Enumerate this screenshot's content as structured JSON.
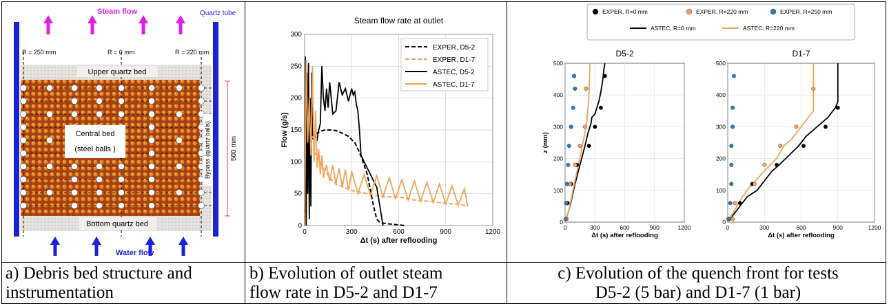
{
  "panel_a": {
    "steam_flow": "Steam flow",
    "quartz_tube": "Quartz tube",
    "r250": "R = 250 mm",
    "r0": "R = 0 mm",
    "r220": "R = 220 mm",
    "upper_bed": "Upper quartz bed",
    "central_bed_1": "Central bed",
    "central_bed_2": "(steel balls )",
    "bypass": "Bypass (quartz balls)",
    "height": "500 mm",
    "bottom_bed": "Bottom quartz bed",
    "water_flow": "Water flow"
  },
  "captions": {
    "a_line1": "a) Debris bed structure and",
    "a_line2": "instrumentation",
    "b_line1": "b) Evolution of outlet steam",
    "b_line2": "flow rate in D5-2 and D1-7",
    "c_line1": "c) Evolution of the quench front for tests",
    "c_line2": "D5-2 (5 bar) and D1-7 (1 bar)"
  },
  "colors": {
    "orange": "#f0a35a",
    "blue": "#2f7bb5",
    "black": "#000000",
    "magenta": "#e020e0",
    "tube_blue": "#1a22d8"
  },
  "chart_data": [
    {
      "type": "line",
      "title": "Steam flow rate at outlet",
      "xlabel": "Δt (s) after reflooding",
      "ylabel": "Flow (g/s)",
      "xlim": [
        0,
        1200
      ],
      "ylim": [
        0,
        300
      ],
      "xticks": [
        0,
        300,
        600,
        900,
        1200
      ],
      "yticks": [
        0,
        50,
        100,
        150,
        200,
        250,
        300
      ],
      "grid": true,
      "legend_position": "top-right",
      "series": [
        {
          "name": "EXPER, D5-2",
          "color": "#000000",
          "dash": true,
          "x": [
            0,
            20,
            40,
            60,
            80,
            100,
            130,
            160,
            200,
            240,
            280,
            320,
            350,
            380,
            400,
            420,
            440,
            460,
            480,
            520,
            560,
            600,
            640
          ],
          "y": [
            20,
            100,
            130,
            140,
            145,
            148,
            150,
            150,
            149,
            145,
            140,
            130,
            115,
            95,
            80,
            55,
            30,
            10,
            5,
            3,
            2,
            1,
            0
          ]
        },
        {
          "name": "EXPER, D1-7",
          "color": "#f0a35a",
          "dash": true,
          "x": [
            0,
            20,
            40,
            80,
            120,
            160,
            200,
            300,
            400,
            500,
            600,
            700,
            800,
            900,
            1000,
            1040
          ],
          "y": [
            10,
            80,
            120,
            110,
            90,
            75,
            65,
            55,
            50,
            45,
            45,
            40,
            38,
            35,
            33,
            30
          ]
        },
        {
          "name": "ASTEC, D5-2",
          "color": "#000000",
          "dash": false,
          "x": [
            0,
            5,
            10,
            15,
            20,
            25,
            30,
            35,
            40,
            45,
            50,
            55,
            60,
            70,
            80,
            90,
            100,
            110,
            120,
            130,
            140,
            150,
            160,
            180,
            200,
            220,
            240,
            260,
            280,
            300,
            310,
            320,
            330,
            340,
            350,
            360,
            380,
            400,
            420,
            440,
            460,
            500
          ],
          "y": [
            0,
            265,
            0,
            240,
            50,
            255,
            10,
            200,
            30,
            240,
            140,
            145,
            140,
            140,
            135,
            150,
            160,
            250,
            200,
            180,
            215,
            185,
            225,
            175,
            180,
            225,
            205,
            215,
            195,
            215,
            205,
            210,
            190,
            180,
            150,
            110,
            100,
            90,
            80,
            70,
            60,
            0
          ]
        },
        {
          "name": "ASTEC, D1-7",
          "color": "#f0a35a",
          "dash": false,
          "x": [
            0,
            10,
            20,
            30,
            40,
            50,
            60,
            70,
            80,
            90,
            100,
            110,
            120,
            140,
            160,
            180,
            200,
            220,
            240,
            260,
            280,
            300,
            340,
            380,
            420,
            460,
            500,
            540,
            580,
            620,
            660,
            700,
            740,
            780,
            820,
            860,
            900,
            940,
            980,
            1020,
            1040
          ],
          "y": [
            0,
            260,
            130,
            200,
            110,
            250,
            100,
            180,
            90,
            120,
            80,
            110,
            75,
            95,
            70,
            95,
            65,
            90,
            60,
            88,
            55,
            85,
            50,
            80,
            48,
            78,
            45,
            75,
            42,
            72,
            40,
            70,
            38,
            68,
            36,
            65,
            34,
            62,
            32,
            58,
            30
          ]
        }
      ]
    },
    {
      "type": "scatter",
      "title": "D5-2",
      "xlabel": "Δt (s) after reflooding",
      "ylabel": "z (mm)",
      "xlim": [
        0,
        1200
      ],
      "ylim": [
        0,
        500
      ],
      "xticks": [
        0,
        300,
        600,
        900,
        1200
      ],
      "yticks": [
        0,
        100,
        200,
        300,
        400,
        500
      ],
      "grid": true,
      "series": [
        {
          "name": "EXPER, R=0 mm",
          "kind": "point",
          "color": "#000000",
          "points": [
            [
              10,
              10
            ],
            [
              20,
              60
            ],
            [
              25,
              60
            ],
            [
              60,
              120
            ],
            [
              120,
              180
            ],
            [
              240,
              240
            ],
            [
              300,
              300
            ],
            [
              360,
              360
            ],
            [
              400,
              460
            ]
          ]
        },
        {
          "name": "EXPER, R=220 mm",
          "kind": "point",
          "color": "#f0a35a",
          "points": [
            [
              15,
              10
            ],
            [
              10,
              60
            ],
            [
              50,
              120
            ],
            [
              100,
              180
            ],
            [
              150,
              240
            ],
            [
              200,
              300
            ],
            [
              210,
              420
            ]
          ]
        },
        {
          "name": "EXPER, R=250 mm",
          "kind": "point",
          "color": "#2f7bb5",
          "points": [
            [
              5,
              10
            ],
            [
              10,
              60
            ],
            [
              20,
              120
            ],
            [
              30,
              180
            ],
            [
              40,
              240
            ],
            [
              60,
              300
            ],
            [
              80,
              360
            ],
            [
              100,
              420
            ],
            [
              90,
              460
            ]
          ]
        },
        {
          "name": "ASTEC, R=0 mm",
          "kind": "line",
          "color": "#000000",
          "points": [
            [
              0,
              0
            ],
            [
              50,
              50
            ],
            [
              100,
              120
            ],
            [
              150,
              180
            ],
            [
              200,
              240
            ],
            [
              230,
              280
            ],
            [
              260,
              310
            ],
            [
              270,
              330
            ],
            [
              300,
              340
            ],
            [
              320,
              360
            ],
            [
              340,
              380
            ],
            [
              360,
              410
            ],
            [
              380,
              450
            ],
            [
              390,
              480
            ],
            [
              400,
              500
            ]
          ]
        },
        {
          "name": "ASTEC, R=220 mm",
          "kind": "line",
          "color": "#f0a35a",
          "points": [
            [
              0,
              0
            ],
            [
              40,
              40
            ],
            [
              80,
              100
            ],
            [
              120,
              160
            ],
            [
              160,
              220
            ],
            [
              200,
              280
            ],
            [
              220,
              320
            ],
            [
              230,
              360
            ],
            [
              240,
              400
            ],
            [
              245,
              450
            ],
            [
              250,
              500
            ]
          ]
        }
      ]
    },
    {
      "type": "scatter",
      "title": "D1-7",
      "xlabel": "Δt (s) after reflooding",
      "xlim": [
        0,
        1200
      ],
      "ylim": [
        0,
        500
      ],
      "xticks": [
        0,
        300,
        600,
        900,
        1200
      ],
      "yticks": [
        0,
        100,
        200,
        300,
        400,
        500
      ],
      "grid": true,
      "series": [
        {
          "name": "EXPER, R=0 mm",
          "kind": "point",
          "color": "#000000",
          "points": [
            [
              10,
              10
            ],
            [
              100,
              60
            ],
            [
              200,
              120
            ],
            [
              400,
              180
            ],
            [
              620,
              240
            ],
            [
              800,
              300
            ],
            [
              900,
              360
            ]
          ]
        },
        {
          "name": "EXPER, R=220 mm",
          "kind": "point",
          "color": "#f0a35a",
          "points": [
            [
              40,
              10
            ],
            [
              60,
              60
            ],
            [
              220,
              120
            ],
            [
              300,
              180
            ],
            [
              430,
              240
            ],
            [
              560,
              300
            ],
            [
              700,
              420
            ]
          ]
        },
        {
          "name": "EXPER, R=250 mm",
          "kind": "point",
          "color": "#2f7bb5",
          "points": [
            [
              5,
              10
            ],
            [
              20,
              60
            ],
            [
              30,
              120
            ],
            [
              30,
              180
            ],
            [
              30,
              240
            ],
            [
              40,
              300
            ],
            [
              40,
              360
            ],
            [
              50,
              460
            ]
          ]
        },
        {
          "name": "ASTEC, R=0 mm",
          "kind": "line",
          "color": "#000000",
          "points": [
            [
              0,
              0
            ],
            [
              80,
              40
            ],
            [
              160,
              80
            ],
            [
              240,
              100
            ],
            [
              300,
              130
            ],
            [
              360,
              160
            ],
            [
              420,
              180
            ],
            [
              500,
              210
            ],
            [
              580,
              240
            ],
            [
              640,
              270
            ],
            [
              700,
              290
            ],
            [
              760,
              310
            ],
            [
              820,
              330
            ],
            [
              860,
              350
            ],
            [
              880,
              360
            ],
            [
              900,
              380
            ],
            [
              900,
              500
            ]
          ]
        },
        {
          "name": "ASTEC, R=220 mm",
          "kind": "line",
          "color": "#f0a35a",
          "points": [
            [
              0,
              0
            ],
            [
              60,
              40
            ],
            [
              120,
              80
            ],
            [
              180,
              110
            ],
            [
              250,
              140
            ],
            [
              320,
              170
            ],
            [
              400,
              200
            ],
            [
              460,
              240
            ],
            [
              520,
              260
            ],
            [
              580,
              290
            ],
            [
              620,
              310
            ],
            [
              660,
              330
            ],
            [
              680,
              340
            ],
            [
              700,
              350
            ],
            [
              700,
              500
            ]
          ]
        }
      ]
    }
  ]
}
